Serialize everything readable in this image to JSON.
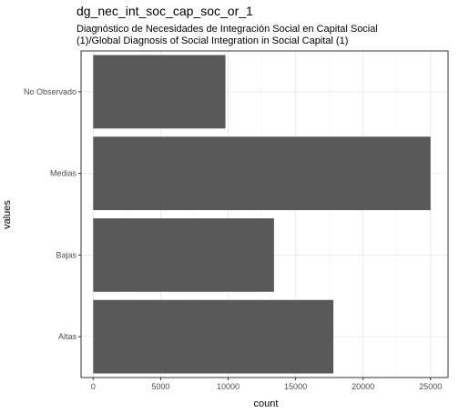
{
  "chart_data": {
    "type": "bar",
    "orientation": "horizontal",
    "title": "dg_nec_int_soc_cap_soc_or_1",
    "subtitle_lines": [
      "Diagnóstico de Necesidades de Integración Social en Capital Social",
      "(1)/Global Diagnosis of Social Integration in Social Capital (1)"
    ],
    "xlabel": "count",
    "ylabel": "values",
    "categories": [
      "Altas",
      "Bajas",
      "Medias",
      "No Observado"
    ],
    "values": [
      17800,
      13400,
      25000,
      9800
    ],
    "xlim": [
      -900,
      26300
    ],
    "x_ticks": [
      0,
      5000,
      10000,
      15000,
      20000,
      25000
    ],
    "x_tick_labels": [
      "0",
      "5000",
      "10000",
      "15000",
      "20000",
      "25000"
    ],
    "grid": true,
    "legend": "none",
    "bar_color": "#595959"
  }
}
